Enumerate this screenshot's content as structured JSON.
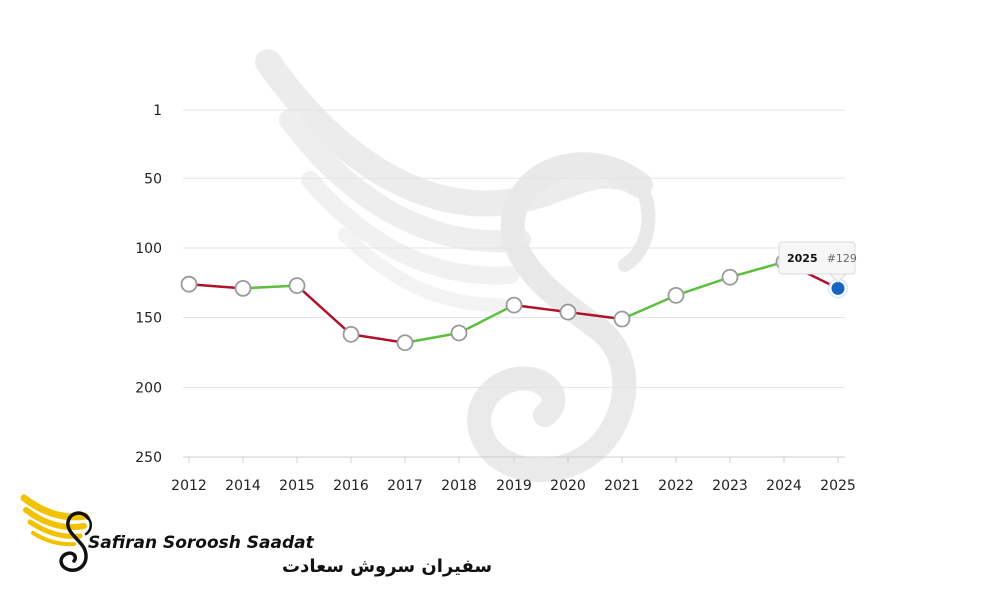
{
  "chart_data": {
    "type": "line",
    "y_reversed": true,
    "ylim": [
      1,
      250
    ],
    "y_ticks": [
      "1",
      "50",
      "100",
      "150",
      "200",
      "250"
    ],
    "categories": [
      "2012",
      "2014",
      "2015",
      "2016",
      "2017",
      "2018",
      "2019",
      "2020",
      "2021",
      "2022",
      "2023",
      "2024",
      "2025"
    ],
    "values": [
      126,
      129,
      127,
      162,
      168,
      161,
      141,
      146,
      151,
      134,
      121,
      110,
      129
    ],
    "grid": true,
    "legend": "none",
    "colors": {
      "worse": "#b0102a",
      "better": "#5dbf3f",
      "point_fill": "#ffffff",
      "point_stroke": "#999999",
      "highlight": "#1565c0"
    },
    "tooltip": {
      "year": "2025",
      "rank": "#129"
    }
  },
  "logo": {
    "latin": "Safiran Soroosh Saadat",
    "farsi": "سفیران سروش سعادت",
    "colors": {
      "wing": "#f2c100",
      "ink": "#111111"
    }
  },
  "watermark": {
    "color": "#e6e6e6"
  }
}
